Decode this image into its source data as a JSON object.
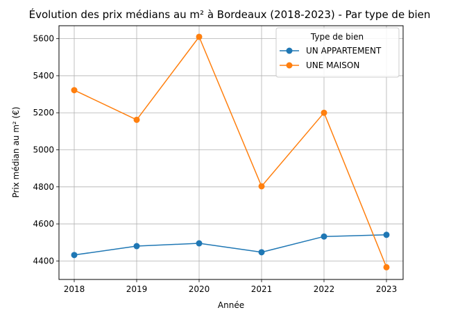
{
  "chart_data": {
    "type": "line",
    "title": "Évolution des prix médians au m² à Bordeaux (2018-2023) - Par type de bien",
    "xlabel": "Année",
    "ylabel": "Prix médian au m² (€)",
    "x": [
      "2018",
      "2019",
      "2020",
      "2021",
      "2022",
      "2023"
    ],
    "y_ticks": [
      "4400",
      "4600",
      "4800",
      "5000",
      "5200",
      "5400",
      "5600"
    ],
    "ylim": [
      4300,
      5670
    ],
    "grid": true,
    "legend": {
      "title": "Type de bien",
      "placement": "top-right"
    },
    "series": [
      {
        "name": "UN APPARTEMENT",
        "color": "#1f77b4",
        "values": [
          4432,
          4480,
          4495,
          4447,
          4532,
          4541
        ]
      },
      {
        "name": "UNE MAISON",
        "color": "#ff7f0e",
        "values": [
          5322,
          5162,
          5610,
          4803,
          5200,
          4366
        ]
      }
    ]
  }
}
